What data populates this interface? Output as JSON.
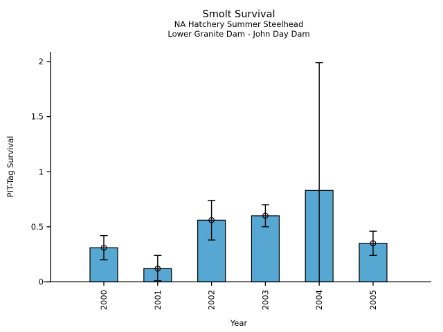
{
  "chart_data": {
    "type": "bar",
    "title": "Smolt Survival",
    "subtitle_line1": "NA Hatchery Summer Steelhead",
    "subtitle_line2": "Lower Granite Dam - John Day Dam",
    "xlabel": "Year",
    "ylabel": "PIT-Tag Survival",
    "categories": [
      "2000",
      "2001",
      "2002",
      "2003",
      "2004",
      "2005"
    ],
    "values": [
      0.31,
      0.12,
      0.56,
      0.6,
      0.83,
      0.35
    ],
    "error_low": [
      0.2,
      0.01,
      0.38,
      0.5,
      0.0,
      0.24
    ],
    "error_high": [
      0.42,
      0.24,
      0.74,
      0.7,
      1.99,
      0.46
    ],
    "point_markers": [
      true,
      true,
      true,
      true,
      false,
      true
    ],
    "ytick_values": [
      0,
      0.5,
      1,
      1.5,
      2
    ],
    "ytick_labels": [
      "0",
      "0.5",
      "1",
      "1.5",
      "2"
    ],
    "ylim": [
      0,
      2.05
    ],
    "grid": false,
    "legend": null,
    "bar_fill_color": "#56A8D2",
    "bar_edge_color": "#000000",
    "error_bar_color": "#000000",
    "axis_color": "#000000",
    "text_color": "#000000",
    "background_color": "#ffffff"
  }
}
